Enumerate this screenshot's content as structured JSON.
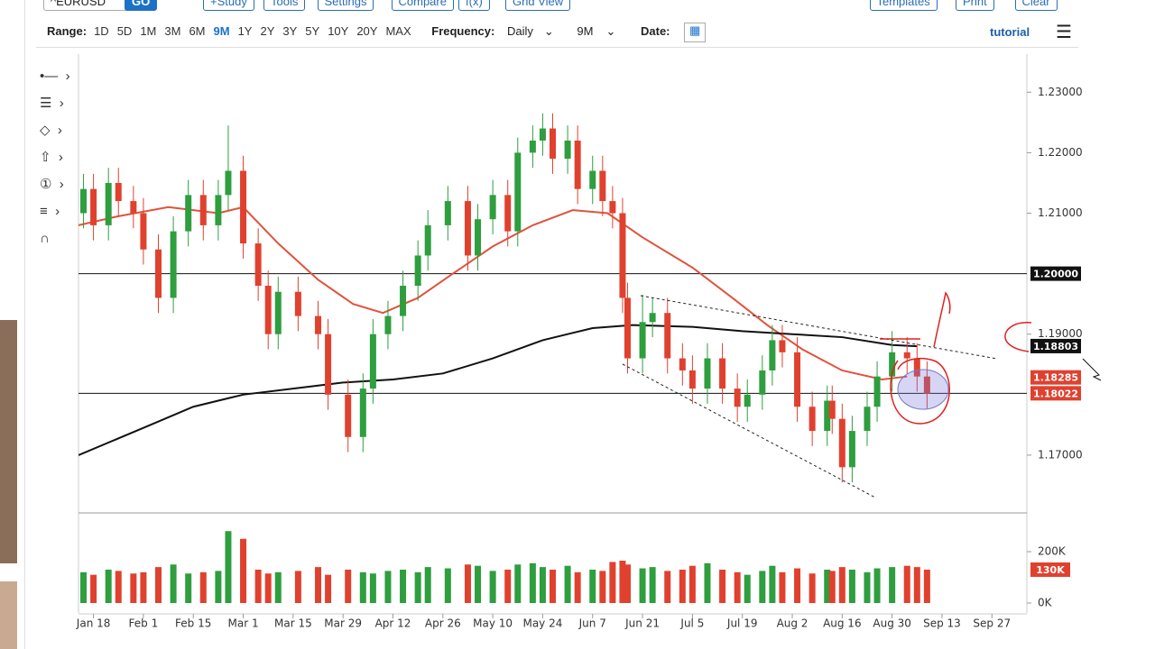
{
  "toolbar": {
    "symbol": "^EURUSD",
    "go": "GO",
    "buttons": [
      "+Study",
      "Tools",
      "Settings",
      "Compare",
      "f(x)",
      "Grid View"
    ],
    "right_buttons": [
      "Templates",
      "Print",
      "Clear"
    ]
  },
  "range_bar": {
    "range_label": "Range:",
    "ranges": [
      "1D",
      "5D",
      "1M",
      "3M",
      "6M",
      "9M",
      "1Y",
      "2Y",
      "3Y",
      "5Y",
      "10Y",
      "20Y",
      "MAX"
    ],
    "active_range": "9M",
    "frequency_label": "Frequency:",
    "frequency": "Daily",
    "period": "9M",
    "date_label": "Date:",
    "brand": "tutorial"
  },
  "chart_data": {
    "type": "candlestick",
    "up_color": "#2e9e3e",
    "down_color": "#e0412f",
    "xlim": [
      -3,
      187
    ],
    "xticks": [
      {
        "value": 0,
        "label": "Jan 18"
      },
      {
        "value": 10,
        "label": "Feb 1"
      },
      {
        "value": 20,
        "label": "Feb 15"
      },
      {
        "value": 30,
        "label": "Mar 1"
      },
      {
        "value": 40,
        "label": "Mar 15"
      },
      {
        "value": 50,
        "label": "Mar 29"
      },
      {
        "value": 60,
        "label": "Apr 12"
      },
      {
        "value": 70,
        "label": "Apr 26"
      },
      {
        "value": 80,
        "label": "May 10"
      },
      {
        "value": 90,
        "label": "May 24"
      },
      {
        "value": 100,
        "label": "Jun 7"
      },
      {
        "value": 110,
        "label": "Jun 21"
      },
      {
        "value": 120,
        "label": "Jul 5"
      },
      {
        "value": 130,
        "label": "Jul 19"
      },
      {
        "value": 140,
        "label": "Aug 2"
      },
      {
        "value": 150,
        "label": "Aug 16"
      },
      {
        "value": 160,
        "label": "Aug 30"
      },
      {
        "value": 170,
        "label": "Sep 13"
      },
      {
        "value": 180,
        "label": "Sep 27"
      }
    ],
    "ylim": [
      1.1606,
      1.2363
    ],
    "yticks": [
      {
        "value": 1.23,
        "label": "1.23000"
      },
      {
        "value": 1.22,
        "label": "1.22000"
      },
      {
        "value": 1.21,
        "label": "1.21000"
      },
      {
        "value": 1.19,
        "label": "1.19000"
      },
      {
        "value": 1.17,
        "label": "1.17000"
      }
    ],
    "x": [
      -2,
      0,
      3,
      5,
      8,
      10,
      13,
      16,
      19,
      22,
      25,
      27,
      30,
      33,
      35,
      37,
      41,
      45,
      47,
      51,
      54,
      56,
      59,
      62,
      65,
      67,
      71,
      75,
      77,
      80,
      83,
      85,
      88,
      90,
      92,
      95,
      97,
      100,
      102,
      104,
      106,
      107,
      110,
      112,
      115,
      118,
      120,
      123,
      126,
      129,
      131,
      134,
      136,
      138,
      141,
      144,
      147,
      148,
      150,
      152,
      155,
      157,
      160,
      163,
      165,
      167
    ],
    "open": [
      1.21,
      1.214,
      1.208,
      1.215,
      1.212,
      1.21,
      1.204,
      1.196,
      1.207,
      1.213,
      1.208,
      1.213,
      1.217,
      1.205,
      1.198,
      1.19,
      1.197,
      1.193,
      1.19,
      1.18,
      1.173,
      1.181,
      1.19,
      1.193,
      1.198,
      1.203,
      1.208,
      1.212,
      1.203,
      1.209,
      1.213,
      1.207,
      1.22,
      1.222,
      1.224,
      1.219,
      1.222,
      1.214,
      1.217,
      1.212,
      1.21,
      1.196,
      1.186,
      1.192,
      1.1935,
      1.186,
      1.184,
      1.181,
      1.186,
      1.181,
      1.178,
      1.18,
      1.184,
      1.189,
      1.187,
      1.178,
      1.174,
      1.179,
      1.176,
      1.168,
      1.174,
      1.178,
      1.183,
      1.187,
      1.186,
      1.183
    ],
    "high": [
      1.2165,
      1.2165,
      1.2175,
      1.2175,
      1.2145,
      1.2125,
      1.2065,
      1.2095,
      1.2155,
      1.2155,
      1.2155,
      1.2245,
      1.2195,
      1.2075,
      1.2005,
      1.1995,
      1.1995,
      1.1955,
      1.1925,
      1.1825,
      1.1835,
      1.1925,
      1.1955,
      1.2005,
      1.2055,
      1.2105,
      1.2145,
      1.2145,
      1.2115,
      1.2155,
      1.2155,
      1.2225,
      1.2245,
      1.2265,
      1.2265,
      1.2245,
      1.2245,
      1.2195,
      1.2195,
      1.2145,
      1.2125,
      1.1985,
      1.1965,
      1.196,
      1.196,
      1.1885,
      1.1865,
      1.1885,
      1.1885,
      1.1835,
      1.1825,
      1.1865,
      1.1915,
      1.1915,
      1.1895,
      1.1805,
      1.1815,
      1.1815,
      1.1785,
      1.1765,
      1.1805,
      1.1855,
      1.1905,
      1.1895,
      1.1885,
      1.1855
    ],
    "low": [
      1.2075,
      1.2055,
      1.2055,
      1.2095,
      1.2075,
      1.2015,
      1.1935,
      1.1935,
      1.2045,
      1.2055,
      1.2055,
      1.2105,
      1.2025,
      1.1955,
      1.1875,
      1.1875,
      1.1905,
      1.1875,
      1.1775,
      1.1705,
      1.1705,
      1.1785,
      1.1875,
      1.1905,
      1.1955,
      1.2005,
      1.2055,
      1.2005,
      1.2005,
      1.2065,
      1.2045,
      1.2045,
      1.2175,
      1.2195,
      1.2165,
      1.2165,
      1.2115,
      1.2115,
      1.2095,
      1.2075,
      1.1935,
      1.1835,
      1.1835,
      1.1895,
      1.1835,
      1.1815,
      1.1785,
      1.1785,
      1.1785,
      1.1755,
      1.1755,
      1.1775,
      1.1815,
      1.1845,
      1.1755,
      1.1715,
      1.1715,
      1.1735,
      1.1655,
      1.1655,
      1.1715,
      1.1755,
      1.1805,
      1.1835,
      1.1805,
      1.1777
    ],
    "close": [
      1.214,
      1.208,
      1.215,
      1.212,
      1.21,
      1.204,
      1.196,
      1.207,
      1.213,
      1.208,
      1.213,
      1.217,
      1.205,
      1.198,
      1.19,
      1.197,
      1.193,
      1.19,
      1.18,
      1.173,
      1.181,
      1.19,
      1.193,
      1.198,
      1.203,
      1.208,
      1.212,
      1.203,
      1.209,
      1.213,
      1.207,
      1.22,
      1.222,
      1.224,
      1.219,
      1.222,
      1.214,
      1.217,
      1.212,
      1.21,
      1.196,
      1.186,
      1.192,
      1.1935,
      1.186,
      1.184,
      1.181,
      1.186,
      1.181,
      1.178,
      1.18,
      1.184,
      1.189,
      1.187,
      1.178,
      1.174,
      1.179,
      1.176,
      1.168,
      1.174,
      1.178,
      1.183,
      1.187,
      1.186,
      1.183,
      1.1802
    ],
    "moving_averages": [
      {
        "color": "#e0533d",
        "x": [
          -3,
          5,
          15,
          25,
          30,
          37,
          45,
          52,
          58,
          65,
          72,
          80,
          88,
          96,
          103,
          110,
          120,
          128,
          135,
          142,
          150,
          158,
          163
        ],
        "values": [
          1.208,
          1.2095,
          1.211,
          1.21,
          1.211,
          1.205,
          1.199,
          1.195,
          1.1935,
          1.196,
          1.2,
          1.2045,
          1.208,
          1.2105,
          1.21,
          1.206,
          1.201,
          1.196,
          1.1915,
          1.1875,
          1.184,
          1.1825,
          1.183
        ]
      },
      {
        "color": "#111111",
        "x": [
          -3,
          10,
          20,
          30,
          40,
          50,
          60,
          70,
          80,
          90,
          100,
          108,
          120,
          130,
          140,
          150,
          160,
          165
        ],
        "values": [
          1.17,
          1.1745,
          1.178,
          1.18,
          1.181,
          1.182,
          1.1825,
          1.1835,
          1.186,
          1.189,
          1.191,
          1.1915,
          1.1912,
          1.1905,
          1.19,
          1.1895,
          1.1882,
          1.188
        ]
      }
    ],
    "price_markers": [
      {
        "value": 1.2,
        "label": "1.20000",
        "color": "#111111",
        "line": true
      },
      {
        "value": 1.18803,
        "label": "1.18803",
        "color": "#111111",
        "line": false
      },
      {
        "value": 1.18285,
        "label": "1.18285",
        "color": "#e0412f",
        "line": false
      },
      {
        "value": 1.18022,
        "label": "1.18022",
        "color": "#e0412f",
        "line": true
      }
    ],
    "volume": {
      "values": [
        120000,
        110000,
        130000,
        125000,
        115000,
        120000,
        140000,
        150000,
        115000,
        120000,
        125000,
        280000,
        250000,
        130000,
        115000,
        120000,
        125000,
        140000,
        110000,
        130000,
        120000,
        115000,
        125000,
        130000,
        120000,
        140000,
        135000,
        150000,
        145000,
        125000,
        130000,
        150000,
        155000,
        140000,
        130000,
        145000,
        120000,
        130000,
        125000,
        160000,
        165000,
        150000,
        135000,
        140000,
        125000,
        130000,
        145000,
        155000,
        130000,
        120000,
        110000,
        125000,
        145000,
        120000,
        135000,
        115000,
        130000,
        125000,
        140000,
        130000,
        120000,
        135000,
        140000,
        145000,
        140000,
        130000
      ],
      "ylim": [
        0,
        330000
      ],
      "yticks": [
        {
          "value": 0,
          "label": "0K"
        },
        {
          "value": 200000,
          "label": "200K"
        }
      ],
      "marker": {
        "value": 130000,
        "label": "130K"
      }
    }
  }
}
